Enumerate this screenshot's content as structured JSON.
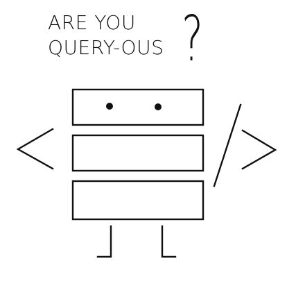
{
  "headline": {
    "line1": "ARE YOU",
    "line2": "QUERY-OUS",
    "question_mark": "?"
  },
  "illustration": {
    "icon": "database-robot-icon",
    "stroke_color": "#111111"
  }
}
